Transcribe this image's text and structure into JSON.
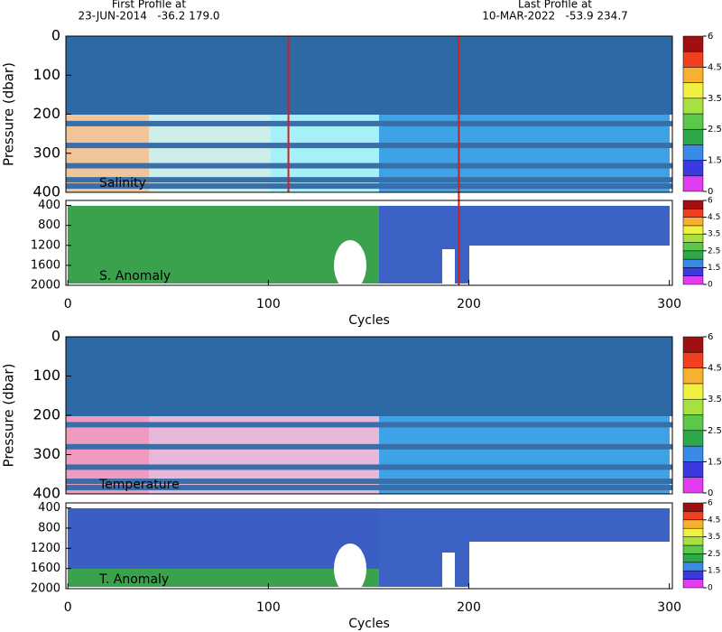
{
  "header": {
    "first_title": "First Profile at",
    "first_info": "23-JUN-2014   -36.2 179.0",
    "last_title": "Last Profile at",
    "last_info": "10-MAR-2022   -53.9 234.7"
  },
  "chart_data": [
    {
      "type": "heatmap",
      "label": "Salinity",
      "ylabel": "Pressure (dbar)",
      "xlim": [
        -1,
        301.5
      ],
      "ylim": [
        400,
        0
      ],
      "yticks": [
        0,
        100,
        200,
        300,
        400
      ],
      "colorbar": {
        "ticks": [
          0,
          1.5,
          2.5,
          3.5,
          4.5,
          6
        ],
        "colors": [
          "#e23cf0",
          "#3a3ae0",
          "#3c8ae8",
          "#2ea84a",
          "#5cc84a",
          "#a8e040",
          "#f0f040",
          "#f8b030",
          "#f04020",
          "#a01010"
        ]
      }
    },
    {
      "type": "heatmap",
      "label": "S. Anomaly",
      "xlabel": "Cycles",
      "xlim": [
        -1,
        301.5
      ],
      "xticks": [
        0,
        100,
        200,
        300
      ],
      "ylim": [
        2000,
        300
      ],
      "yticks": [
        400,
        800,
        1200,
        1600,
        2000
      ],
      "colorbar": {
        "ticks": [
          0,
          1.5,
          2.5,
          3.5,
          4.5,
          6
        ],
        "colors": [
          "#e23cf0",
          "#3a3ae0",
          "#3c8ae8",
          "#2ea84a",
          "#5cc84a",
          "#a8e040",
          "#f0f040",
          "#f8b030",
          "#f04020",
          "#a01010"
        ]
      }
    },
    {
      "type": "heatmap",
      "label": "Temperature",
      "ylabel": "Pressure (dbar)",
      "xlim": [
        -1,
        301.5
      ],
      "ylim": [
        400,
        0
      ],
      "yticks": [
        0,
        100,
        200,
        300,
        400
      ],
      "colorbar": {
        "ticks": [
          0,
          1.5,
          2.5,
          3.5,
          4.5,
          6
        ],
        "colors": [
          "#e23cf0",
          "#3a3ae0",
          "#3c8ae8",
          "#2ea84a",
          "#5cc84a",
          "#a8e040",
          "#f0f040",
          "#f8b030",
          "#f04020",
          "#a01010"
        ]
      }
    },
    {
      "type": "heatmap",
      "label": "T. Anomaly",
      "xlabel": "Cycles",
      "xlim": [
        -1,
        301.5
      ],
      "xticks": [
        0,
        100,
        200,
        300
      ],
      "ylim": [
        2000,
        300
      ],
      "yticks": [
        400,
        800,
        1200,
        1600,
        2000
      ],
      "colorbar": {
        "ticks": [
          0,
          1.5,
          2.5,
          3.5,
          4.5,
          6
        ],
        "colors": [
          "#e23cf0",
          "#3a3ae0",
          "#3c8ae8",
          "#2ea84a",
          "#5cc84a",
          "#a8e040",
          "#f0f040",
          "#f8b030",
          "#f04020",
          "#a01010"
        ]
      }
    }
  ]
}
